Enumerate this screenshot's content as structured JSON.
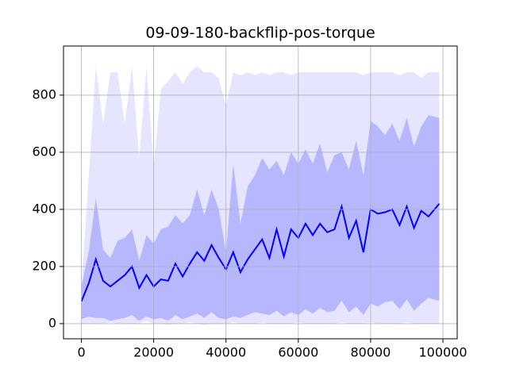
{
  "chart_data": {
    "type": "line",
    "title": "09-09-180-backflip-pos-torque",
    "x": [
      0,
      2000,
      4000,
      6000,
      8000,
      10000,
      12000,
      14000,
      16000,
      18000,
      20000,
      22000,
      24000,
      26000,
      28000,
      30000,
      32000,
      34000,
      36000,
      38000,
      40000,
      42000,
      44000,
      46000,
      48000,
      50000,
      52000,
      54000,
      56000,
      58000,
      60000,
      62000,
      64000,
      66000,
      68000,
      70000,
      72000,
      74000,
      76000,
      78000,
      80000,
      82000,
      84000,
      86000,
      88000,
      90000,
      92000,
      94000,
      96000,
      99000
    ],
    "series": [
      {
        "color": "#0000ff",
        "values": [
          78,
          140,
          225,
          150,
          130,
          150,
          170,
          200,
          125,
          170,
          130,
          155,
          150,
          210,
          165,
          210,
          250,
          220,
          275,
          230,
          190,
          250,
          180,
          225,
          260,
          295,
          230,
          330,
          235,
          330,
          300,
          350,
          310,
          350,
          320,
          330,
          410,
          300,
          360,
          250,
          400,
          385,
          390,
          400,
          345,
          410,
          335,
          395,
          375,
          420
        ]
      }
    ],
    "bands": [
      {
        "color": "#0000ff",
        "alpha": 0.1,
        "upper": [
          130,
          510,
          900,
          700,
          880,
          880,
          700,
          900,
          580,
          900,
          550,
          820,
          850,
          880,
          840,
          880,
          900,
          880,
          880,
          860,
          760,
          880,
          870,
          880,
          870,
          880,
          870,
          880,
          880,
          870,
          880,
          880,
          880,
          880,
          880,
          880,
          880,
          880,
          880,
          870,
          880,
          880,
          880,
          880,
          870,
          880,
          880,
          860,
          880,
          880
        ],
        "lower": [
          0,
          0,
          0,
          0,
          5,
          0,
          0,
          0,
          0,
          10,
          0,
          0,
          -5,
          0,
          0,
          5,
          0,
          -5,
          0,
          0,
          0,
          5,
          0,
          0,
          0,
          5,
          0,
          0,
          0,
          0,
          5,
          0,
          0,
          0,
          0,
          0,
          5,
          0,
          0,
          0,
          5,
          0,
          0,
          0,
          0,
          5,
          0,
          0,
          0,
          0
        ]
      },
      {
        "color": "#0000ff",
        "alpha": 0.2,
        "upper": [
          130,
          250,
          440,
          260,
          230,
          290,
          300,
          330,
          220,
          310,
          280,
          330,
          340,
          380,
          350,
          380,
          470,
          380,
          470,
          400,
          250,
          560,
          350,
          480,
          520,
          580,
          540,
          570,
          520,
          600,
          560,
          610,
          560,
          630,
          530,
          590,
          600,
          540,
          640,
          520,
          710,
          690,
          660,
          700,
          640,
          720,
          620,
          690,
          730,
          720
        ],
        "lower": [
          15,
          25,
          20,
          20,
          10,
          15,
          20,
          30,
          10,
          25,
          15,
          20,
          10,
          30,
          15,
          25,
          35,
          20,
          40,
          20,
          15,
          25,
          20,
          30,
          40,
          35,
          30,
          45,
          25,
          40,
          30,
          50,
          35,
          55,
          40,
          45,
          80,
          40,
          60,
          30,
          70,
          60,
          75,
          80,
          50,
          85,
          45,
          70,
          90,
          80
        ]
      }
    ],
    "xlim": [
      -4950,
      103950
    ],
    "ylim": [
      -53,
      972
    ],
    "xticks": [
      0,
      20000,
      40000,
      60000,
      80000,
      100000
    ],
    "yticks": [
      0,
      200,
      400,
      600,
      800
    ],
    "grid": true
  }
}
